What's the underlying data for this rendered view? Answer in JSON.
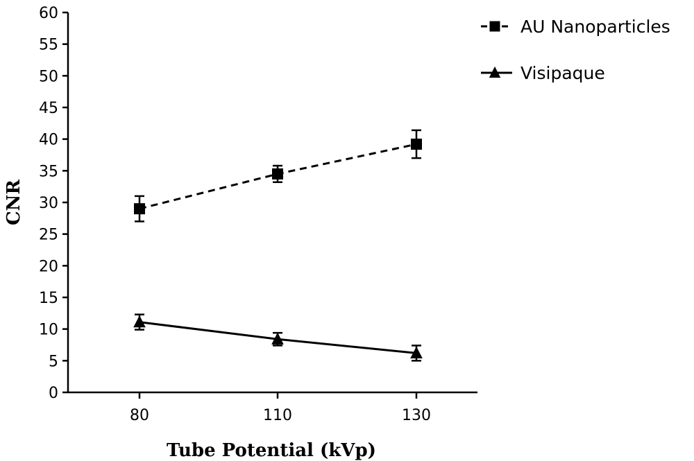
{
  "chart_data": {
    "type": "line",
    "title": "",
    "xlabel": "Tube Potential (kVp)",
    "ylabel": "CNR",
    "x": [
      80,
      110,
      130
    ],
    "x_tick_labels": [
      "80",
      "110",
      "130"
    ],
    "ylim": [
      0,
      60
    ],
    "y_ticks": [
      0,
      5,
      10,
      15,
      20,
      25,
      30,
      35,
      40,
      45,
      50,
      55,
      60
    ],
    "grid": false,
    "legend_position": "top-right",
    "series": [
      {
        "name": "AU Nanoparticles",
        "marker": "square",
        "line_style": "dashed",
        "color": "#000000",
        "values": [
          29.0,
          34.5,
          39.2
        ],
        "error": [
          2.0,
          1.3,
          2.2
        ]
      },
      {
        "name": "Visipaque",
        "marker": "triangle",
        "line_style": "solid",
        "color": "#000000",
        "values": [
          11.1,
          8.4,
          6.2
        ],
        "error": [
          1.2,
          1.0,
          1.2
        ]
      }
    ]
  }
}
